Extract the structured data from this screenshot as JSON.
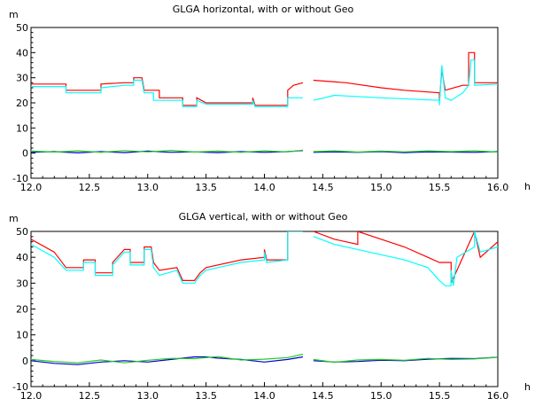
{
  "chart_data": [
    {
      "type": "line",
      "title": "GLGA horizontal, with or without Geo",
      "ylabel": "m",
      "xlabel": "h",
      "xlim": [
        12.0,
        16.0
      ],
      "ylim": [
        -10,
        50
      ],
      "xticks": [
        "12.0",
        "12.5",
        "13.0",
        "13.5",
        "14.0",
        "14.5",
        "15.0",
        "15.5",
        "16.0"
      ],
      "yticks": [
        "-10",
        "0",
        "10",
        "20",
        "30",
        "40",
        "50"
      ],
      "series": [
        {
          "color": "#ff0000",
          "points": [
            [
              12.0,
              27.5
            ],
            [
              12.3,
              27.5
            ],
            [
              12.3,
              25
            ],
            [
              12.6,
              25
            ],
            [
              12.6,
              27.5
            ],
            [
              12.8,
              28
            ],
            [
              12.88,
              28
            ],
            [
              12.88,
              30
            ],
            [
              12.95,
              30
            ],
            [
              12.97,
              25
            ],
            [
              13.1,
              25
            ],
            [
              13.1,
              22
            ],
            [
              13.3,
              22
            ],
            [
              13.3,
              19
            ],
            [
              13.42,
              19
            ],
            [
              13.42,
              22
            ],
            [
              13.5,
              20
            ],
            [
              13.9,
              20
            ],
            [
              13.9,
              22
            ],
            [
              13.92,
              19
            ],
            [
              14.2,
              19
            ],
            [
              14.2,
              25
            ],
            [
              14.25,
              27
            ],
            [
              14.33,
              28
            ],
            [
              null,
              null
            ],
            [
              14.42,
              29
            ],
            [
              14.7,
              28
            ],
            [
              15.0,
              26
            ],
            [
              15.2,
              25
            ],
            [
              15.5,
              24
            ],
            [
              15.5,
              21
            ],
            [
              15.52,
              33
            ],
            [
              15.55,
              25
            ],
            [
              15.7,
              27
            ],
            [
              15.75,
              27
            ],
            [
              15.75,
              40
            ],
            [
              15.8,
              40
            ],
            [
              15.8,
              28
            ],
            [
              16.0,
              28
            ]
          ]
        },
        {
          "color": "#00ffff",
          "points": [
            [
              12.0,
              26.5
            ],
            [
              12.3,
              26.5
            ],
            [
              12.3,
              24
            ],
            [
              12.6,
              24
            ],
            [
              12.6,
              26
            ],
            [
              12.8,
              27
            ],
            [
              12.88,
              27
            ],
            [
              12.88,
              29
            ],
            [
              12.95,
              29
            ],
            [
              12.97,
              24
            ],
            [
              13.05,
              24
            ],
            [
              13.05,
              21
            ],
            [
              13.3,
              21
            ],
            [
              13.3,
              18.5
            ],
            [
              13.42,
              18.5
            ],
            [
              13.42,
              21
            ],
            [
              13.5,
              19.5
            ],
            [
              13.9,
              19.5
            ],
            [
              13.9,
              21
            ],
            [
              13.92,
              18.5
            ],
            [
              14.2,
              18.5
            ],
            [
              14.2,
              22
            ],
            [
              14.33,
              22
            ],
            [
              null,
              null
            ],
            [
              14.42,
              21
            ],
            [
              14.6,
              23
            ],
            [
              15.0,
              22
            ],
            [
              15.5,
              21
            ],
            [
              15.5,
              19
            ],
            [
              15.52,
              35
            ],
            [
              15.55,
              22
            ],
            [
              15.6,
              21
            ],
            [
              15.7,
              24
            ],
            [
              15.75,
              27
            ],
            [
              15.77,
              37
            ],
            [
              15.8,
              37
            ],
            [
              15.8,
              27
            ],
            [
              16.0,
              27.5
            ]
          ]
        },
        {
          "color": "#0000cc",
          "points": [
            [
              12.0,
              0.3
            ],
            [
              12.2,
              0.6
            ],
            [
              12.4,
              0.1
            ],
            [
              12.6,
              0.6
            ],
            [
              12.8,
              0.2
            ],
            [
              13.0,
              0.8
            ],
            [
              13.2,
              0.3
            ],
            [
              13.4,
              0.5
            ],
            [
              13.6,
              0.2
            ],
            [
              13.8,
              0.6
            ],
            [
              14.0,
              0.3
            ],
            [
              14.2,
              0.6
            ],
            [
              14.33,
              1.0
            ],
            [
              null,
              null
            ],
            [
              14.42,
              0.3
            ],
            [
              14.6,
              0.5
            ],
            [
              14.8,
              0.3
            ],
            [
              15.0,
              0.6
            ],
            [
              15.2,
              0.2
            ],
            [
              15.4,
              0.5
            ],
            [
              15.6,
              0.4
            ],
            [
              15.8,
              0.3
            ],
            [
              16.0,
              0.6
            ]
          ]
        },
        {
          "color": "#22cc22",
          "points": [
            [
              12.0,
              0.8
            ],
            [
              12.2,
              0.4
            ],
            [
              12.4,
              0.9
            ],
            [
              12.6,
              0.3
            ],
            [
              12.8,
              1.0
            ],
            [
              13.0,
              0.5
            ],
            [
              13.2,
              1.1
            ],
            [
              13.4,
              0.4
            ],
            [
              13.6,
              0.8
            ],
            [
              13.8,
              0.3
            ],
            [
              14.0,
              0.9
            ],
            [
              14.2,
              0.5
            ],
            [
              14.33,
              1.2
            ],
            [
              null,
              null
            ],
            [
              14.42,
              0.6
            ],
            [
              14.6,
              0.9
            ],
            [
              14.8,
              0.4
            ],
            [
              15.0,
              0.8
            ],
            [
              15.2,
              0.5
            ],
            [
              15.4,
              0.9
            ],
            [
              15.6,
              0.6
            ],
            [
              15.8,
              0.9
            ],
            [
              16.0,
              0.4
            ]
          ]
        }
      ]
    },
    {
      "type": "line",
      "title": "GLGA vertical, with or without Geo",
      "ylabel": "m",
      "xlabel": "h",
      "xlim": [
        12.0,
        16.0
      ],
      "ylim": [
        -10,
        50
      ],
      "xticks": [
        "12.0",
        "12.5",
        "13.0",
        "13.5",
        "14.0",
        "14.5",
        "15.0",
        "15.5",
        "16.0"
      ],
      "yticks": [
        "-10",
        "0",
        "10",
        "20",
        "30",
        "40",
        "50"
      ],
      "series": [
        {
          "color": "#ff0000",
          "points": [
            [
              12.0,
              47
            ],
            [
              12.2,
              42
            ],
            [
              12.3,
              36
            ],
            [
              12.45,
              36
            ],
            [
              12.45,
              39
            ],
            [
              12.55,
              39
            ],
            [
              12.55,
              34
            ],
            [
              12.7,
              34
            ],
            [
              12.7,
              38
            ],
            [
              12.8,
              43
            ],
            [
              12.85,
              43
            ],
            [
              12.85,
              38
            ],
            [
              12.97,
              38
            ],
            [
              12.97,
              44
            ],
            [
              13.03,
              44
            ],
            [
              13.05,
              38
            ],
            [
              13.1,
              35
            ],
            [
              13.25,
              36
            ],
            [
              13.3,
              31
            ],
            [
              13.4,
              31
            ],
            [
              13.45,
              34
            ],
            [
              13.5,
              36
            ],
            [
              13.8,
              39
            ],
            [
              14.0,
              40
            ],
            [
              14.0,
              43
            ],
            [
              14.02,
              39
            ],
            [
              14.2,
              39
            ],
            [
              14.2,
              50
            ],
            [
              14.33,
              50
            ],
            [
              null,
              null
            ],
            [
              14.42,
              50
            ],
            [
              14.6,
              47
            ],
            [
              14.8,
              45
            ],
            [
              14.8,
              50
            ],
            [
              15.0,
              47
            ],
            [
              15.2,
              44
            ],
            [
              15.4,
              40
            ],
            [
              15.5,
              38
            ],
            [
              15.6,
              38
            ],
            [
              15.6,
              30
            ],
            [
              15.7,
              40
            ],
            [
              15.8,
              50
            ],
            [
              15.85,
              40
            ],
            [
              16.0,
              46
            ]
          ]
        },
        {
          "color": "#00ffff",
          "points": [
            [
              12.0,
              45
            ],
            [
              12.2,
              40
            ],
            [
              12.3,
              35
            ],
            [
              12.45,
              35
            ],
            [
              12.45,
              38
            ],
            [
              12.55,
              38
            ],
            [
              12.55,
              33
            ],
            [
              12.7,
              33
            ],
            [
              12.7,
              37
            ],
            [
              12.8,
              42
            ],
            [
              12.85,
              42
            ],
            [
              12.85,
              37
            ],
            [
              12.97,
              37
            ],
            [
              12.97,
              43
            ],
            [
              13.03,
              43
            ],
            [
              13.05,
              36
            ],
            [
              13.1,
              33
            ],
            [
              13.25,
              35
            ],
            [
              13.3,
              30
            ],
            [
              13.4,
              30
            ],
            [
              13.45,
              33
            ],
            [
              13.5,
              35
            ],
            [
              13.8,
              38
            ],
            [
              14.0,
              39
            ],
            [
              14.0,
              42
            ],
            [
              14.02,
              38
            ],
            [
              14.2,
              39
            ],
            [
              14.2,
              50
            ],
            [
              14.33,
              50
            ],
            [
              null,
              null
            ],
            [
              14.42,
              48
            ],
            [
              14.6,
              45
            ],
            [
              14.8,
              43
            ],
            [
              15.0,
              41
            ],
            [
              15.2,
              39
            ],
            [
              15.4,
              36
            ],
            [
              15.5,
              31
            ],
            [
              15.55,
              29
            ],
            [
              15.6,
              29
            ],
            [
              15.6,
              35
            ],
            [
              15.62,
              29
            ],
            [
              15.65,
              40
            ],
            [
              15.8,
              44
            ],
            [
              15.8,
              50
            ],
            [
              15.85,
              42
            ],
            [
              16.0,
              44
            ]
          ]
        },
        {
          "color": "#0000cc",
          "points": [
            [
              12.0,
              0
            ],
            [
              12.2,
              -1
            ],
            [
              12.4,
              -1.5
            ],
            [
              12.6,
              -0.5
            ],
            [
              12.8,
              0
            ],
            [
              13.0,
              -0.5
            ],
            [
              13.2,
              0.5
            ],
            [
              13.4,
              1.5
            ],
            [
              13.5,
              1.5
            ],
            [
              13.6,
              1
            ],
            [
              13.8,
              0.5
            ],
            [
              14.0,
              -0.5
            ],
            [
              14.2,
              0.5
            ],
            [
              14.33,
              1.5
            ],
            [
              null,
              null
            ],
            [
              14.42,
              0
            ],
            [
              14.6,
              -0.5
            ],
            [
              14.8,
              -0.3
            ],
            [
              15.0,
              0.2
            ],
            [
              15.2,
              0
            ],
            [
              15.4,
              0.6
            ],
            [
              15.6,
              0.9
            ],
            [
              15.8,
              0.8
            ],
            [
              16.0,
              1.4
            ]
          ]
        },
        {
          "color": "#22cc22",
          "points": [
            [
              12.0,
              0.5
            ],
            [
              12.2,
              -0.3
            ],
            [
              12.4,
              -0.8
            ],
            [
              12.6,
              0.3
            ],
            [
              12.8,
              -0.8
            ],
            [
              13.0,
              0.2
            ],
            [
              13.2,
              0.9
            ],
            [
              13.4,
              0.8
            ],
            [
              13.6,
              1.6
            ],
            [
              13.8,
              0.3
            ],
            [
              14.0,
              0.6
            ],
            [
              14.2,
              1.2
            ],
            [
              14.33,
              2.5
            ],
            [
              null,
              null
            ],
            [
              14.42,
              0.5
            ],
            [
              14.6,
              -0.6
            ],
            [
              14.8,
              0.3
            ],
            [
              15.0,
              0.5
            ],
            [
              15.2,
              0.2
            ],
            [
              15.4,
              0.9
            ],
            [
              15.6,
              0.5
            ],
            [
              15.8,
              0.7
            ],
            [
              16.0,
              1.3
            ]
          ]
        }
      ]
    }
  ]
}
